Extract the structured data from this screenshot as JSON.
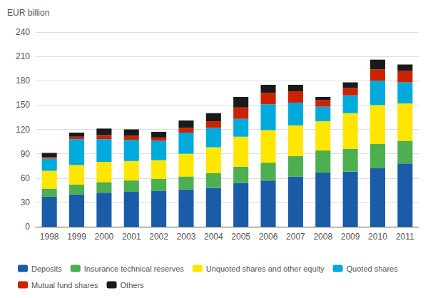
{
  "chart_data": {
    "type": "bar",
    "stacked": true,
    "ylabel": "EUR billion",
    "categories": [
      "1998",
      "1999",
      "2000",
      "2001",
      "2002",
      "2003",
      "2004",
      "2005",
      "2006",
      "2007",
      "2008",
      "2009",
      "2010",
      "2011"
    ],
    "series": [
      {
        "name": "Deposits",
        "color": "#1a5ca8",
        "values": [
          37,
          40,
          42,
          43,
          44,
          46,
          48,
          54,
          57,
          62,
          67,
          68,
          72,
          78
        ]
      },
      {
        "name": "Insurance technical reserves",
        "color": "#4caf50",
        "values": [
          10,
          12,
          13,
          14,
          15,
          16,
          18,
          20,
          22,
          25,
          27,
          28,
          30,
          28
        ]
      },
      {
        "name": "Unquoted shares and other equity",
        "color": "#ffe600",
        "values": [
          22,
          24,
          25,
          24,
          23,
          28,
          32,
          37,
          40,
          38,
          36,
          44,
          48,
          46
        ]
      },
      {
        "name": "Quoted shares",
        "color": "#00aadd",
        "values": [
          15,
          32,
          28,
          26,
          24,
          26,
          24,
          22,
          32,
          28,
          18,
          22,
          30,
          26
        ]
      },
      {
        "name": "Mutual fund shares",
        "color": "#cc2200",
        "values": [
          2,
          3,
          5,
          5,
          4,
          6,
          8,
          14,
          14,
          14,
          8,
          9,
          14,
          14
        ]
      },
      {
        "name": "Others",
        "color": "#1a1a1a",
        "values": [
          5,
          5,
          8,
          8,
          7,
          9,
          10,
          13,
          10,
          8,
          4,
          7,
          12,
          8
        ]
      }
    ],
    "ylim": [
      0,
      240
    ],
    "yticks": [
      0,
      30,
      60,
      90,
      120,
      150,
      180,
      210,
      240
    ],
    "grid": true,
    "legend": "bottom"
  }
}
